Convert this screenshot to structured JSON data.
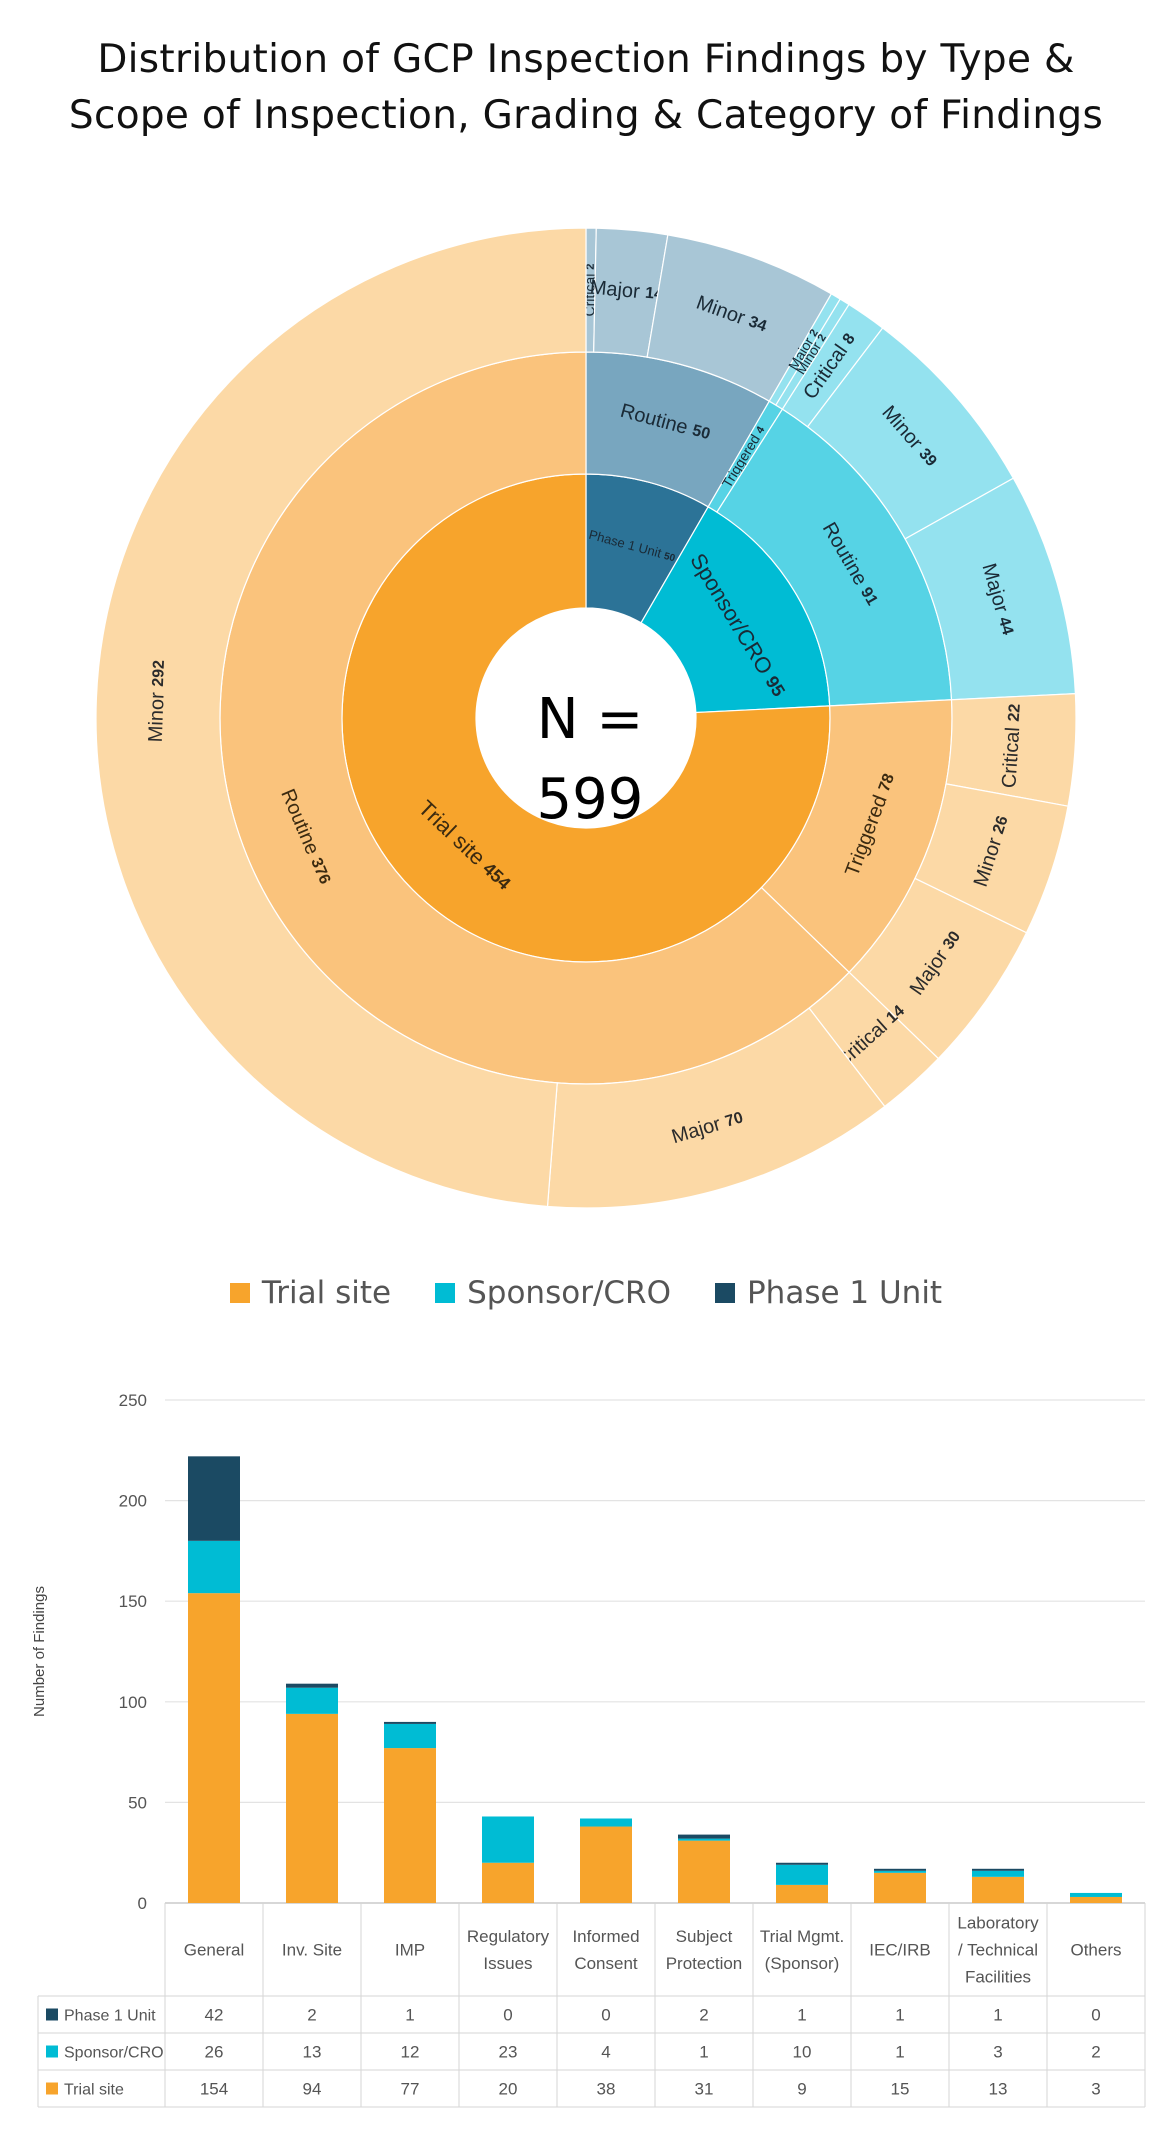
{
  "title_lines": [
    "Distribution of GCP Inspection Findings by Type &",
    "Scope of Inspection, Grading & Category of Findings"
  ],
  "center_label": "N = 599",
  "colors": {
    "trial_site": "#F7A42C",
    "trial_site_mid": "#FAC37C",
    "trial_site_outer": "#FCD9A6",
    "sponsor": "#00BCD4",
    "sponsor_mid": "#56D3E5",
    "sponsor_outer": "#94E2EF",
    "phase1": "#2C7397",
    "phase1_mid": "#78A6BF",
    "phase1_outer": "#A8C6D6",
    "phase1_legend": "#1B4A63"
  },
  "legend": [
    {
      "label": "Trial site",
      "color": "#F7A42C"
    },
    {
      "label": "Sponsor/CRO",
      "color": "#00BCD4"
    },
    {
      "label": "Phase 1 Unit",
      "color": "#1B4A63"
    }
  ],
  "chart_data": [
    {
      "type": "sunburst",
      "total_label": "N = 599",
      "rings": [
        [
          {
            "label": "Phase 1 Unit",
            "value": 50,
            "group": "phase1"
          },
          {
            "label": "Sponsor/CRO",
            "value": 95,
            "group": "sponsor"
          },
          {
            "label": "Trial site",
            "value": 454,
            "group": "trial_site"
          }
        ],
        [
          {
            "label": "Routine",
            "value": 50,
            "group": "phase1"
          },
          {
            "label": "Triggered",
            "value": 4,
            "group": "sponsor"
          },
          {
            "label": "Routine",
            "value": 91,
            "group": "sponsor"
          },
          {
            "label": "Triggered",
            "value": 78,
            "group": "trial_site"
          },
          {
            "label": "Routine",
            "value": 376,
            "group": "trial_site"
          }
        ],
        [
          {
            "label": "Critical",
            "value": 2,
            "group": "phase1"
          },
          {
            "label": "Major",
            "value": 14,
            "group": "phase1"
          },
          {
            "label": "Minor",
            "value": 34,
            "group": "phase1"
          },
          {
            "label": "Major",
            "value": 2,
            "group": "sponsor"
          },
          {
            "label": "Minor",
            "value": 2,
            "group": "sponsor"
          },
          {
            "label": "Critical",
            "value": 8,
            "group": "sponsor"
          },
          {
            "label": "Minor",
            "value": 39,
            "group": "sponsor"
          },
          {
            "label": "Major",
            "value": 44,
            "group": "sponsor"
          },
          {
            "label": "Critical",
            "value": 22,
            "group": "trial_site"
          },
          {
            "label": "Minor",
            "value": 26,
            "group": "trial_site"
          },
          {
            "label": "Major",
            "value": 30,
            "group": "trial_site"
          },
          {
            "label": "Critical",
            "value": 14,
            "group": "trial_site"
          },
          {
            "label": "Major",
            "value": 70,
            "group": "trial_site"
          },
          {
            "label": "Minor",
            "value": 292,
            "group": "trial_site"
          }
        ]
      ]
    },
    {
      "type": "bar",
      "stacked": true,
      "ylabel": "Number of Findings",
      "ylim": [
        0,
        250
      ],
      "yticks": [
        0,
        50,
        100,
        150,
        200,
        250
      ],
      "grid": true,
      "categories": [
        [
          "General"
        ],
        [
          "Inv. Site"
        ],
        [
          "IMP"
        ],
        [
          "Regulatory",
          "Issues"
        ],
        [
          "Informed",
          "Consent"
        ],
        [
          "Subject",
          "Protection"
        ],
        [
          "Trial Mgmt.",
          "(Sponsor)"
        ],
        [
          "IEC/IRB"
        ],
        [
          "Laboratory",
          "/ Technical",
          "Facilities"
        ],
        [
          "Others"
        ]
      ],
      "series": [
        {
          "name": "Trial site",
          "key": "trial_site",
          "values": [
            154,
            94,
            77,
            20,
            38,
            31,
            9,
            15,
            13,
            3
          ]
        },
        {
          "name": "Sponsor/CRO",
          "key": "sponsor",
          "values": [
            26,
            13,
            12,
            23,
            4,
            1,
            10,
            1,
            3,
            2
          ]
        },
        {
          "name": "Phase 1 Unit",
          "key": "phase1_legend",
          "values": [
            42,
            2,
            1,
            0,
            0,
            2,
            1,
            1,
            1,
            0
          ]
        }
      ],
      "table_rows_order": [
        "Phase 1 Unit",
        "Sponsor/CRO",
        "Trial site"
      ]
    }
  ]
}
